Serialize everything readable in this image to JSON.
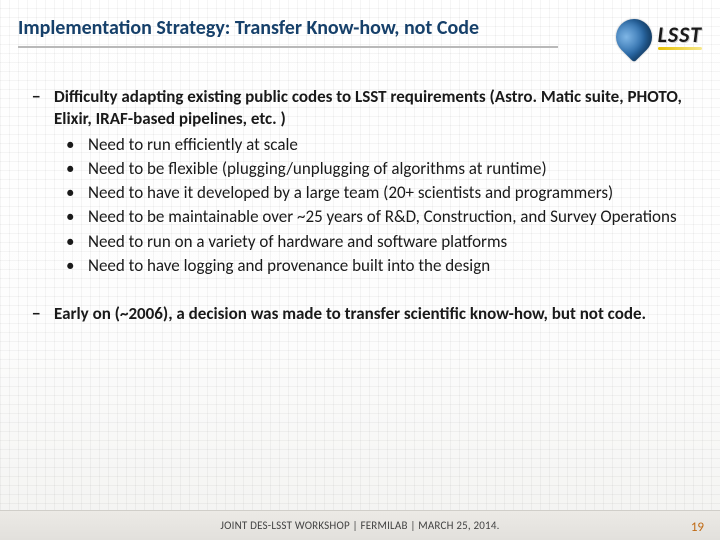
{
  "title": "Implementation Strategy: Transfer Know-how, not Code",
  "logo": {
    "text": "LSST"
  },
  "block1": {
    "lead": "Difficulty adapting existing public codes to LSST requirements (Astro. Matic suite, PHOTO, Elixir, IRAF-based pipelines, etc. )",
    "items": [
      "Need to run efficiently at scale",
      "Need to be flexible (plugging/unplugging of algorithms at runtime)",
      "Need to have it developed by a large team (20+ scientists and programmers)",
      "Need to be maintainable over ~25 years of R&D, Construction, and Survey Operations",
      "Need to run on a variety of hardware and software platforms",
      "Need to have logging and provenance built into the design"
    ]
  },
  "block2": {
    "lead": "Early on (~2006), a decision was made to transfer scientific know-how, but not code."
  },
  "footer": "JOINT DES-LSST WORKSHOP | FERMILAB | MARCH 25, 2014.",
  "page": "19",
  "colors": {
    "title": "#16406a",
    "accent": "#c06a14",
    "body": "#1a1a1a"
  }
}
